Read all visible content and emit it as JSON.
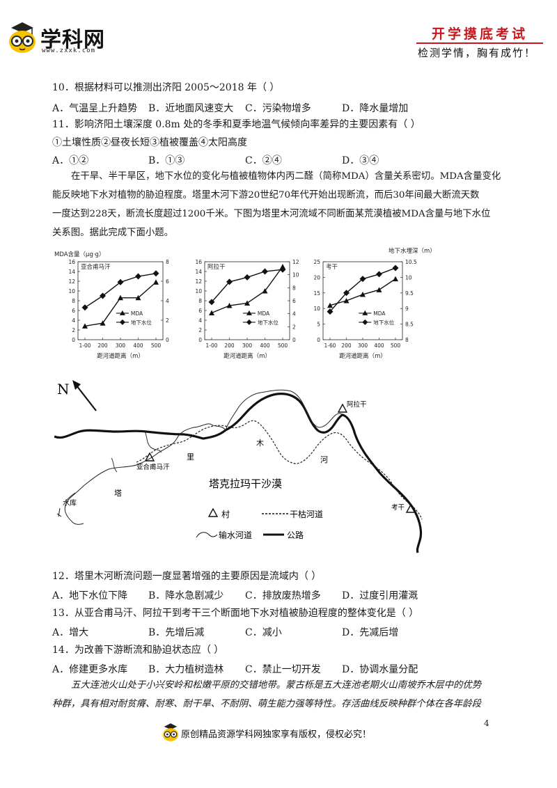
{
  "header": {
    "logo_text": "学科网",
    "logo_url": "www.zxxk.com",
    "badge_title": "开学摸底考试",
    "badge_sub": "检测学情，胸有成竹！"
  },
  "q10": {
    "stem": "10．根据材料可以推测出济阳 2005～2018 年（    ）",
    "options": [
      "A．气温呈上升趋势",
      "B．近地面风速变大",
      "C．污染物增多",
      "D．降水量增加"
    ]
  },
  "q11": {
    "stem": "11．影响济阳土壤深度 0.8m 处的冬季和夏季地温气候倾向率差异的主要因素有（    ）",
    "choices": "①土壤性质②昼夜长短③植被覆盖④太阳高度",
    "options": [
      "A．①②",
      "B．①③",
      "C．②④",
      "D．③④"
    ]
  },
  "passage1": [
    "在干旱、半干旱区，地下水位的变化与植被植物体内丙二醛（简称MDA）含量关系密切。MDA含量变化",
    "能反映地下水对植物的胁迫程度。塔里木河下游20世纪70年代开始出现断流，而后30年间最大断流天数",
    "一度达到228天，断流长度超过1200千米。下图为塔里木河流域不同断面某荒漠植被MDA含量与地下水位",
    "关系图。据此完成下面小题。"
  ],
  "charts_common": {
    "ylabel_left": "MDA含量（μg·g）",
    "ylabel_right": "地下水埋深（m）",
    "legend_mda": "MDA",
    "legend_gw": "地下水位"
  },
  "chart_data": [
    {
      "type": "line",
      "title": "亚合甫马汗",
      "xlabel": "距河道距离（m）",
      "categories": [
        "1-00",
        "200",
        "300",
        "400",
        "500"
      ],
      "ylim": [
        0,
        16
      ],
      "yticks": [
        "0",
        "2",
        "4",
        "6",
        "8",
        "10",
        "12",
        "14",
        "16"
      ],
      "y2lim": [
        0,
        8
      ],
      "y2ticks": [
        "0",
        "2",
        "4",
        "6",
        "8"
      ],
      "series": [
        {
          "name": "MDA",
          "axis": "left",
          "marker": "triangle",
          "values": [
            2.8,
            3.4,
            8.6,
            8.6,
            11.8
          ]
        },
        {
          "name": "地下水位",
          "axis": "right",
          "marker": "diamond",
          "values": [
            3.3,
            4.5,
            5.9,
            6.5,
            6.8
          ]
        }
      ]
    },
    {
      "type": "line",
      "title": "阿拉干",
      "xlabel": "距河道距离（m）",
      "categories": [
        "1-00",
        "200",
        "300",
        "400",
        "500"
      ],
      "ylim": [
        0,
        16
      ],
      "yticks": [
        "0",
        "2",
        "4",
        "6",
        "8",
        "10",
        "12",
        "14",
        "16"
      ],
      "y2lim": [
        0,
        12
      ],
      "y2ticks": [
        "0",
        "2",
        "4",
        "6",
        "8",
        "10",
        "12"
      ],
      "series": [
        {
          "name": "MDA",
          "axis": "left",
          "marker": "triangle",
          "values": [
            5.5,
            7,
            7.5,
            10,
            15
          ]
        },
        {
          "name": "地下水位",
          "axis": "right",
          "marker": "diamond",
          "values": [
            5.8,
            8.9,
            9.6,
            10.5,
            10.8
          ]
        }
      ]
    },
    {
      "type": "line",
      "title": "考干",
      "xlabel": "距河道距离（m）",
      "categories": [
        "1-60",
        "200",
        "300",
        "400",
        "500"
      ],
      "ylim": [
        0,
        25
      ],
      "yticks": [
        "0",
        "5",
        "10",
        "15",
        "20",
        "25"
      ],
      "y2lim": [
        8,
        10.5
      ],
      "y2ticks": [
        "8",
        "8.5",
        "9",
        "9.5",
        "10",
        "10.5"
      ],
      "series": [
        {
          "name": "MDA",
          "axis": "left",
          "marker": "triangle",
          "values": [
            11,
            12.5,
            14.5,
            16,
            19.5
          ]
        },
        {
          "name": "地下水位",
          "axis": "right",
          "marker": "diamond",
          "values": [
            8.9,
            9.5,
            9.95,
            10.1,
            10.3
          ]
        }
      ]
    }
  ],
  "map": {
    "north": "N",
    "desert_label": "塔克拉玛干沙漠",
    "villages": [
      "亚合甫马汗",
      "阿拉干",
      "考干"
    ],
    "reservoir": "水库",
    "river_chars": [
      "塔",
      "里",
      "木",
      "河"
    ],
    "legend": {
      "village": "村",
      "dry_river": "干枯河道",
      "canal": "输水河道",
      "road": "公路"
    }
  },
  "q12": {
    "stem": "12．塔里木河断流问题一度显著增强的主要原因是流域内（    ）",
    "options": [
      "A．地下水位下降",
      "B．降水急剧减少",
      "C．排放废热增多",
      "D．过度引用灌溉"
    ]
  },
  "q13": {
    "stem": "13．从亚合甫马汗、阿拉干到考干三个断面地下水对植被胁迫程度的整体变化是（    ）",
    "options": [
      "A．增大",
      "B．先增后减",
      "C．减小",
      "D．先减后增"
    ]
  },
  "q14": {
    "stem": "14．为改善下游断流和胁迫状态应（    ）",
    "options": [
      "A．修建更多水库",
      "B．大力植树造林",
      "C．禁止一切开发",
      "D．协调水量分配"
    ]
  },
  "passage2": [
    "五大连池火山处于小兴安岭和松嫩平原的交错地带。蒙古栎是五大连池老期火山南坡乔木层中的优势",
    "种群，具有相对耐贫瘠、耐寒、耐干旱、不耐阴、萌生能力强等特性。存活曲线反映种群个体在各年龄段"
  ],
  "page_number": "4",
  "footer": "原创精品资源学科网独家享有版权，侵权必究！"
}
